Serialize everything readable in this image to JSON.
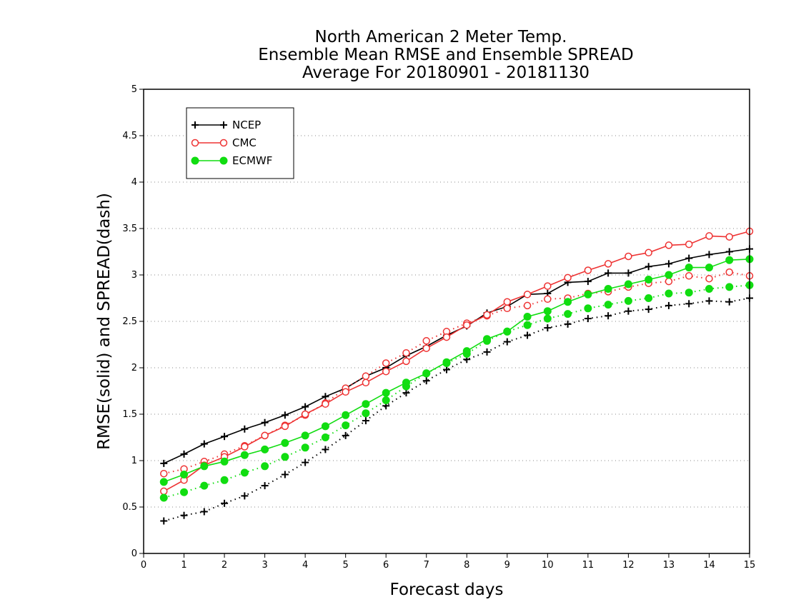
{
  "chart_data": {
    "type": "line",
    "title": [
      "North American 2 Meter Temp.",
      "Ensemble Mean RMSE and Ensemble SPREAD",
      "Average For 20180901 - 20181130"
    ],
    "xlabel": "Forecast days",
    "ylabel": "RMSE(solid)  and  SPREAD(dash)",
    "xlim": [
      0,
      15
    ],
    "ylim": [
      0,
      5
    ],
    "x_ticks": [
      "0",
      "1",
      "2",
      "3",
      "4",
      "5",
      "6",
      "7",
      "8",
      "9",
      "10",
      "11",
      "12",
      "13",
      "14",
      "15"
    ],
    "y_ticks": [
      "0",
      "0.5",
      "1",
      "1.5",
      "2",
      "2.5",
      "3",
      "3.5",
      "4",
      "4.5",
      "5"
    ],
    "grid": "horizontal dotted",
    "legend_position": "top-left",
    "x": [
      0.5,
      1,
      1.5,
      2,
      2.5,
      3,
      3.5,
      4,
      4.5,
      5,
      5.5,
      6,
      6.5,
      7,
      7.5,
      8,
      8.5,
      9,
      9.5,
      10,
      10.5,
      11,
      11.5,
      12,
      12.5,
      13,
      13.5,
      14,
      14.5,
      15
    ],
    "series": [
      {
        "name": "NCEP",
        "color": "#000000",
        "marker": "plus",
        "rmse": [
          0.97,
          1.07,
          1.18,
          1.26,
          1.34,
          1.41,
          1.49,
          1.58,
          1.69,
          1.78,
          1.91,
          2.0,
          2.13,
          2.23,
          2.35,
          2.45,
          2.59,
          2.66,
          2.79,
          2.8,
          2.92,
          2.93,
          3.02,
          3.02,
          3.09,
          3.12,
          3.18,
          3.22,
          3.25,
          3.28
        ],
        "spread": [
          0.35,
          0.41,
          0.45,
          0.54,
          0.62,
          0.73,
          0.85,
          0.98,
          1.12,
          1.27,
          1.43,
          1.59,
          1.73,
          1.86,
          1.98,
          2.09,
          2.17,
          2.28,
          2.35,
          2.43,
          2.47,
          2.53,
          2.56,
          2.61,
          2.63,
          2.67,
          2.69,
          2.72,
          2.71,
          2.75
        ]
      },
      {
        "name": "CMC",
        "color": "#ee3333",
        "marker": "open-circle",
        "rmse": [
          0.67,
          0.79,
          0.95,
          1.04,
          1.15,
          1.27,
          1.37,
          1.5,
          1.61,
          1.74,
          1.84,
          1.96,
          2.07,
          2.21,
          2.33,
          2.46,
          2.57,
          2.71,
          2.79,
          2.88,
          2.97,
          3.05,
          3.12,
          3.2,
          3.24,
          3.32,
          3.33,
          3.42,
          3.41,
          3.47
        ],
        "spread": [
          0.86,
          0.91,
          0.99,
          1.07,
          1.16,
          1.27,
          1.38,
          1.49,
          1.62,
          1.78,
          1.91,
          2.05,
          2.16,
          2.29,
          2.39,
          2.48,
          2.56,
          2.64,
          2.67,
          2.74,
          2.75,
          2.8,
          2.82,
          2.87,
          2.91,
          2.93,
          2.99,
          2.96,
          3.03,
          2.99
        ]
      },
      {
        "name": "ECMWF",
        "color": "#11dd11",
        "marker": "filled-circle",
        "rmse": [
          0.77,
          0.85,
          0.94,
          0.99,
          1.06,
          1.12,
          1.19,
          1.27,
          1.37,
          1.49,
          1.61,
          1.73,
          1.84,
          1.94,
          2.06,
          2.18,
          2.31,
          2.39,
          2.55,
          2.61,
          2.71,
          2.79,
          2.85,
          2.9,
          2.95,
          3.0,
          3.08,
          3.08,
          3.16,
          3.17
        ],
        "spread": [
          0.6,
          0.66,
          0.73,
          0.79,
          0.87,
          0.94,
          1.04,
          1.14,
          1.25,
          1.38,
          1.51,
          1.65,
          1.8,
          1.94,
          2.05,
          2.15,
          2.29,
          2.39,
          2.46,
          2.53,
          2.58,
          2.64,
          2.68,
          2.72,
          2.75,
          2.8,
          2.81,
          2.85,
          2.87,
          2.89
        ]
      }
    ]
  }
}
